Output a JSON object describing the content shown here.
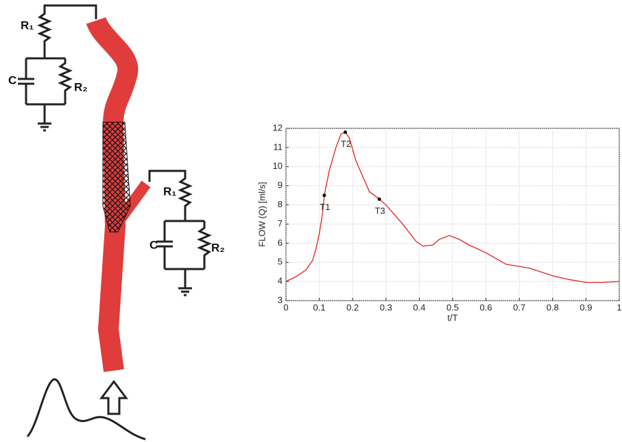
{
  "diagram": {
    "outlet_top": {
      "r1": "R₁",
      "c": "C",
      "r2": "R₂"
    },
    "outlet_branch": {
      "r1": "R₁",
      "c": "C",
      "r2": "R₂"
    }
  },
  "chart_data": {
    "type": "line",
    "xlabel": "t/T",
    "ylabel": "FLOW (Q) [ml/s]",
    "x": [
      0,
      0.03,
      0.06,
      0.08,
      0.09,
      0.1,
      0.11,
      0.115,
      0.13,
      0.15,
      0.165,
      0.178,
      0.19,
      0.21,
      0.25,
      0.28,
      0.3,
      0.35,
      0.39,
      0.41,
      0.44,
      0.46,
      0.49,
      0.52,
      0.55,
      0.6,
      0.66,
      0.73,
      0.8,
      0.85,
      0.9,
      0.95,
      1.0
    ],
    "series": [
      {
        "color": "#e02020",
        "values": [
          4.0,
          4.25,
          4.6,
          5.1,
          5.7,
          6.5,
          7.6,
          8.5,
          9.8,
          11.0,
          11.7,
          11.8,
          11.5,
          10.3,
          8.7,
          8.3,
          8.0,
          7.0,
          6.1,
          5.85,
          5.9,
          6.2,
          6.4,
          6.2,
          5.9,
          5.5,
          4.9,
          4.7,
          4.3,
          4.1,
          3.95,
          3.95,
          4.0
        ]
      }
    ],
    "annotations": [
      {
        "text": "T1",
        "x": 0.115,
        "y": 8.5
      },
      {
        "text": "T2",
        "x": 0.178,
        "y": 11.8
      },
      {
        "text": "T3",
        "x": 0.28,
        "y": 8.3
      }
    ],
    "xlim": [
      0,
      1
    ],
    "ylim": [
      3,
      12
    ],
    "xticks": [
      0,
      0.1,
      0.2,
      0.3,
      0.4,
      0.5,
      0.6,
      0.7,
      0.8,
      0.9,
      1
    ],
    "yticks": [
      3,
      4,
      5,
      6,
      7,
      8,
      9,
      10,
      11,
      12
    ],
    "grid": true
  }
}
